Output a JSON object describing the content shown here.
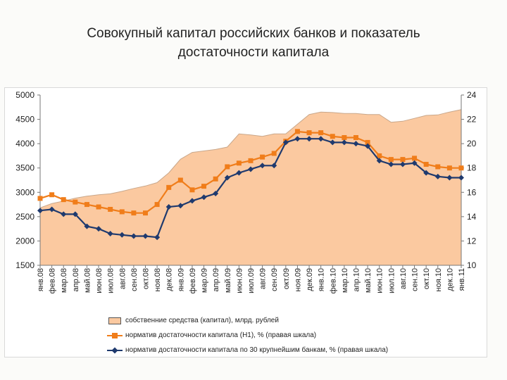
{
  "title_line1": "Совокупный капитал российских банков и показатель",
  "title_line2": "достаточности капитала",
  "chart_data": {
    "type": "line",
    "categories": [
      "янв.08",
      "фев.08",
      "мар.08",
      "апр.08",
      "май.08",
      "июн.08",
      "июл.08",
      "авг.08",
      "сен.08",
      "окт.08",
      "ноя.08",
      "дек.08",
      "янв.09",
      "фев.09",
      "мар.09",
      "апр.09",
      "май.09",
      "июн.09",
      "июл.09",
      "авг.09",
      "сен.09",
      "окт.09",
      "ноя.09",
      "дек.09",
      "янв.10",
      "фев.10",
      "мар.10",
      "апр.10",
      "май.10",
      "июн.10",
      "июл.10",
      "авг.10",
      "сен.10",
      "окт.10",
      "ноя.10",
      "дек.10",
      "янв.11"
    ],
    "left_axis": {
      "ylim": [
        1500,
        5000
      ],
      "ticks": [
        "5000",
        "4500",
        "4000",
        "3500",
        "3000",
        "2500",
        "2000",
        "1500"
      ]
    },
    "right_axis": {
      "ylim": [
        10,
        24
      ],
      "ticks": [
        "24",
        "22",
        "20",
        "18",
        "16",
        "14",
        "12",
        "10"
      ]
    },
    "series": [
      {
        "name": "собственние средства (капитал), млрд. рублей",
        "type": "area",
        "axis": "left",
        "color": "#fbc9a0",
        "values": [
          2680,
          2770,
          2820,
          2880,
          2920,
          2950,
          2970,
          3020,
          3080,
          3130,
          3200,
          3400,
          3680,
          3820,
          3850,
          3880,
          3930,
          4200,
          4180,
          4150,
          4200,
          4200,
          4400,
          4600,
          4650,
          4640,
          4620,
          4620,
          4600,
          4600,
          4440,
          4460,
          4520,
          4580,
          4590,
          4650,
          4700
        ]
      },
      {
        "name": "норматив достаточности капитала (Н1), % (правая шкала)",
        "type": "line",
        "axis": "right",
        "color": "#f07d1a",
        "values": [
          15.5,
          15.8,
          15.4,
          15.2,
          15.0,
          14.8,
          14.6,
          14.4,
          14.3,
          14.3,
          15.0,
          16.4,
          17.0,
          16.2,
          16.5,
          17.1,
          18.1,
          18.4,
          18.6,
          18.9,
          19.2,
          20.2,
          21.0,
          20.9,
          20.9,
          20.6,
          20.5,
          20.5,
          20.1,
          19.0,
          18.7,
          18.7,
          18.8,
          18.3,
          18.1,
          18.0,
          18.0
        ]
      },
      {
        "name": "норматив достаточности капитала по 30 крупнейшим банкам, % (правая шкала)",
        "type": "line",
        "axis": "right",
        "color": "#1f3a6e",
        "values": [
          14.5,
          14.6,
          14.2,
          14.2,
          13.2,
          13.0,
          12.6,
          12.5,
          12.4,
          12.4,
          12.3,
          14.8,
          14.9,
          15.3,
          15.6,
          15.9,
          17.2,
          17.6,
          17.9,
          18.2,
          18.2,
          20.1,
          20.4,
          20.4,
          20.4,
          20.1,
          20.1,
          20.0,
          19.8,
          18.6,
          18.3,
          18.3,
          18.4,
          17.6,
          17.3,
          17.2,
          17.2
        ]
      }
    ]
  }
}
